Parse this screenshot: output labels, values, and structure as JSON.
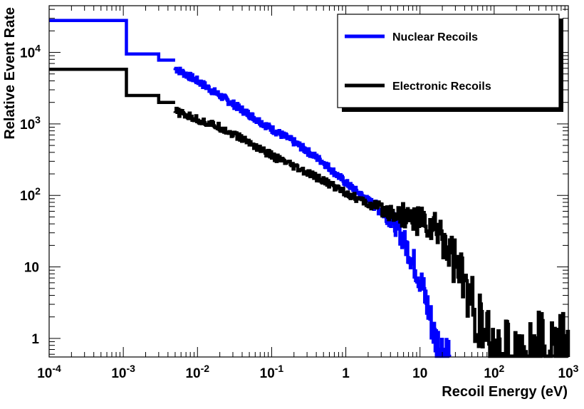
{
  "chart_data": {
    "type": "line",
    "title": "",
    "xlabel": "Recoil Energy (eV)",
    "ylabel": "Relative Event Rate",
    "x_scale": "log",
    "y_scale": "log",
    "xlim": [
      0.0001,
      1000
    ],
    "ylim": [
      0.55,
      45000
    ],
    "x_ticks": [
      {
        "value": 0.0001,
        "base": "10",
        "exp": "-4"
      },
      {
        "value": 0.001,
        "base": "10",
        "exp": "-3"
      },
      {
        "value": 0.01,
        "base": "10",
        "exp": "-2"
      },
      {
        "value": 0.1,
        "base": "10",
        "exp": "-1"
      },
      {
        "value": 1,
        "base": "1",
        "exp": ""
      },
      {
        "value": 10,
        "base": "10",
        "exp": ""
      },
      {
        "value": 100,
        "base": "10",
        "exp": "2"
      },
      {
        "value": 1000,
        "base": "10",
        "exp": "3"
      }
    ],
    "y_ticks": [
      {
        "value": 1,
        "base": "1",
        "exp": ""
      },
      {
        "value": 10,
        "base": "10",
        "exp": ""
      },
      {
        "value": 100,
        "base": "10",
        "exp": "2"
      },
      {
        "value": 1000,
        "base": "10",
        "exp": "3"
      },
      {
        "value": 10000,
        "base": "10",
        "exp": "4"
      }
    ],
    "legend_position": "top-right",
    "series": [
      {
        "name": "Nuclear Recoils",
        "color": "#0000ff",
        "x": [
          0.0001,
          0.0011,
          0.002,
          0.003,
          0.005,
          0.01,
          0.02,
          0.05,
          0.1,
          0.2,
          0.5,
          1,
          2,
          3,
          4,
          5,
          7,
          10,
          13,
          16,
          20,
          25
        ],
        "y": [
          28000,
          28000,
          9500,
          7800,
          6000,
          4000,
          2500,
          1350,
          850,
          560,
          290,
          150,
          85,
          62,
          48,
          35,
          17,
          7,
          2.5,
          1,
          0.7,
          0.6
        ]
      },
      {
        "name": "Electronic Recoils",
        "color": "#000000",
        "x": [
          0.0001,
          0.0011,
          0.002,
          0.003,
          0.005,
          0.01,
          0.02,
          0.05,
          0.1,
          0.2,
          0.5,
          1,
          2,
          3,
          5,
          8,
          12,
          20,
          30,
          50,
          70,
          100,
          1000
        ],
        "y": [
          5800,
          5800,
          2500,
          2000,
          1500,
          1150,
          900,
          550,
          360,
          250,
          160,
          110,
          75,
          65,
          55,
          48,
          40,
          28,
          12,
          3,
          1.2,
          0.6,
          0.55
        ]
      }
    ]
  }
}
